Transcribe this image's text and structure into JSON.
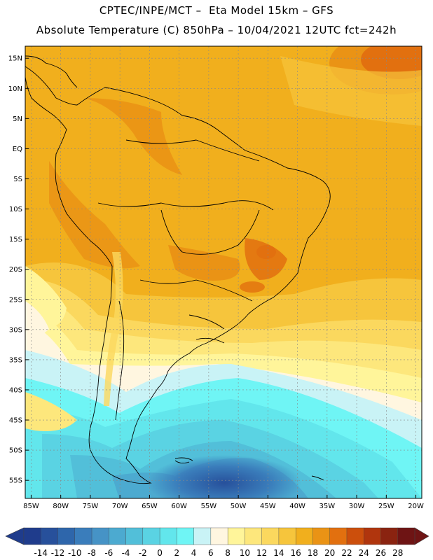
{
  "header": {
    "line1": "CPTEC/INPE/MCT –  Eta Model 15km – GFS",
    "line2": "Absolute Temperature (C) 850hPa – 10/04/2021 12UTC fct=242h"
  },
  "map": {
    "lat_labels": [
      "15N",
      "10N",
      "5N",
      "EQ",
      "5S",
      "10S",
      "15S",
      "20S",
      "25S",
      "30S",
      "35S",
      "40S",
      "45S",
      "50S",
      "55S"
    ],
    "lat_values": [
      15,
      10,
      5,
      0,
      -5,
      -10,
      -15,
      -20,
      -25,
      -30,
      -35,
      -40,
      -45,
      -50,
      -55
    ],
    "lon_labels": [
      "85W",
      "80W",
      "75W",
      "70W",
      "65W",
      "60W",
      "55W",
      "50W",
      "45W",
      "40W",
      "35W",
      "30W",
      "25W",
      "20W"
    ],
    "lon_values": [
      -85,
      -80,
      -75,
      -70,
      -65,
      -60,
      -55,
      -50,
      -45,
      -40,
      -35,
      -30,
      -25,
      -20
    ],
    "lat_range": [
      -58,
      17
    ],
    "lon_range": [
      -86,
      -19
    ]
  },
  "colorbar": {
    "labels": [
      "-14",
      "-12",
      "-10",
      "-8",
      "-6",
      "-4",
      "-2",
      "0",
      "2",
      "4",
      "6",
      "8",
      "10",
      "12",
      "14",
      "16",
      "18",
      "20",
      "22",
      "24",
      "26",
      "28"
    ],
    "colors": [
      "#1f3c8c",
      "#27509b",
      "#2e66ab",
      "#3a7dbb",
      "#4693c6",
      "#4caad0",
      "#52bfd9",
      "#5ad3e3",
      "#62e6ec",
      "#6ff5f5",
      "#c9f3f6",
      "#fff6e0",
      "#fff59a",
      "#fde77c",
      "#fbd85e",
      "#f6c53c",
      "#f1af1d",
      "#ea9315",
      "#e2700f",
      "#cc4f0c",
      "#b0350d",
      "#8a2310",
      "#6e1414"
    ]
  }
}
